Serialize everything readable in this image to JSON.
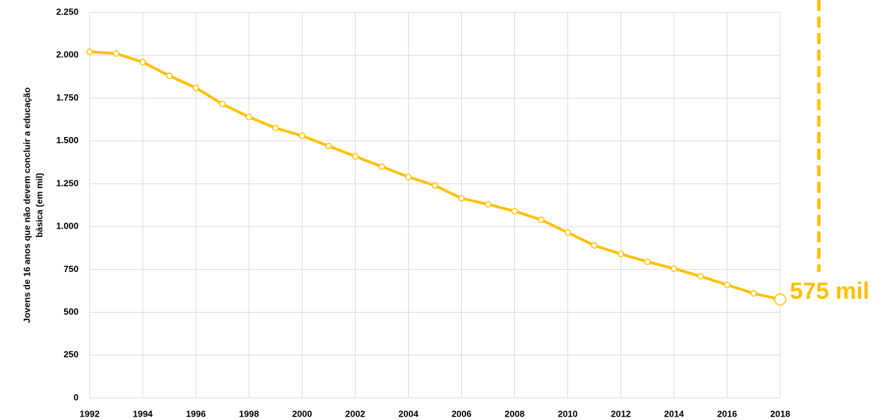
{
  "chart_data": {
    "type": "line",
    "ylabel": [
      "Jovens de 16 anos  que não devem concluir  a educação",
      "básica (em mil)"
    ],
    "x": [
      1992,
      1993,
      1994,
      1995,
      1996,
      1997,
      1998,
      1999,
      2000,
      2001,
      2002,
      2003,
      2004,
      2005,
      2006,
      2007,
      2008,
      2009,
      2010,
      2011,
      2012,
      2013,
      2014,
      2015,
      2016,
      2017,
      2018
    ],
    "series": [
      {
        "name": "Jovens",
        "color": "#FFC000",
        "values": [
          2020,
          2010,
          1960,
          1880,
          1810,
          1715,
          1640,
          1575,
          1530,
          1470,
          1410,
          1350,
          1290,
          1240,
          1165,
          1130,
          1090,
          1040,
          965,
          890,
          840,
          795,
          755,
          710,
          660,
          610,
          575
        ],
        "value_labels": [
          null,
          null,
          null,
          null,
          null,
          null,
          null,
          null,
          null,
          null,
          null,
          null,
          null,
          null,
          null,
          null,
          null,
          null,
          null,
          null,
          null,
          null,
          null,
          null,
          null,
          null,
          "575 mil"
        ]
      }
    ],
    "xlim": [
      1992,
      2018
    ],
    "xticks": [
      1992,
      1994,
      1996,
      1998,
      2000,
      2002,
      2004,
      2006,
      2008,
      2010,
      2012,
      2014,
      2016,
      2018
    ],
    "ylim": [
      0,
      2250
    ],
    "yticks": [
      0,
      250,
      500,
      750,
      {
        "value": 1000,
        "label": "1.000"
      },
      {
        "value": 1250,
        "label": "1.250"
      },
      {
        "value": 1500,
        "label": "1.500"
      },
      {
        "value": 1750,
        "label": "1.750"
      },
      {
        "value": 2000,
        "label": "2.000"
      },
      {
        "value": 2250,
        "label": "2.250"
      }
    ],
    "grid": true
  }
}
